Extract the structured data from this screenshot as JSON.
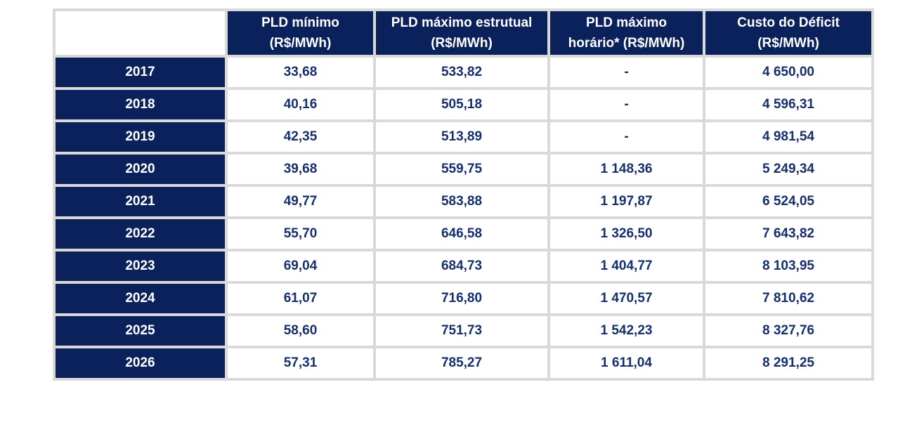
{
  "chart_data": {
    "type": "table",
    "title": "",
    "columns": [
      {
        "label": "PLD mínimo (R$/MWh)",
        "line1": "PLD mínimo",
        "line2": "(R$/MWh)"
      },
      {
        "label": "PLD máximo estrutual (R$/MWh)",
        "line1": "PLD máximo estrutual",
        "line2": "(R$/MWh)"
      },
      {
        "label": "PLD máximo horário* (R$/MWh)",
        "line1": "PLD máximo",
        "line2": "horário* (R$/MWh)"
      },
      {
        "label": "Custo do Déficit (R$/MWh)",
        "line1": "Custo do Déficit",
        "line2": "(R$/MWh)"
      }
    ],
    "rows": [
      {
        "year": "2017",
        "values": [
          "33,68",
          "533,82",
          "-",
          "4 650,00"
        ]
      },
      {
        "year": "2018",
        "values": [
          "40,16",
          "505,18",
          "-",
          "4 596,31"
        ]
      },
      {
        "year": "2019",
        "values": [
          "42,35",
          "513,89",
          "-",
          "4 981,54"
        ]
      },
      {
        "year": "2020",
        "values": [
          "39,68",
          "559,75",
          "1 148,36",
          "5 249,34"
        ]
      },
      {
        "year": "2021",
        "values": [
          "49,77",
          "583,88",
          "1 197,87",
          "6 524,05"
        ]
      },
      {
        "year": "2022",
        "values": [
          "55,70",
          "646,58",
          "1 326,50",
          "7 643,82"
        ]
      },
      {
        "year": "2023",
        "values": [
          "69,04",
          "684,73",
          "1 404,77",
          "8 103,95"
        ]
      },
      {
        "year": "2024",
        "values": [
          "61,07",
          "716,80",
          "1 470,57",
          "7 810,62"
        ]
      },
      {
        "year": "2025",
        "values": [
          "58,60",
          "751,73",
          "1 542,23",
          "8 327,76"
        ]
      },
      {
        "year": "2026",
        "values": [
          "57,31",
          "785,27",
          "1 611,04",
          "8 291,25"
        ]
      }
    ],
    "numeric_rows": [
      {
        "year": 2017,
        "pld_minimo": 33.68,
        "pld_maximo_estrutual": 533.82,
        "pld_maximo_horario": null,
        "custo_deficit": 4650.0
      },
      {
        "year": 2018,
        "pld_minimo": 40.16,
        "pld_maximo_estrutual": 505.18,
        "pld_maximo_horario": null,
        "custo_deficit": 4596.31
      },
      {
        "year": 2019,
        "pld_minimo": 42.35,
        "pld_maximo_estrutual": 513.89,
        "pld_maximo_horario": null,
        "custo_deficit": 4981.54
      },
      {
        "year": 2020,
        "pld_minimo": 39.68,
        "pld_maximo_estrutual": 559.75,
        "pld_maximo_horario": 1148.36,
        "custo_deficit": 5249.34
      },
      {
        "year": 2021,
        "pld_minimo": 49.77,
        "pld_maximo_estrutual": 583.88,
        "pld_maximo_horario": 1197.87,
        "custo_deficit": 6524.05
      },
      {
        "year": 2022,
        "pld_minimo": 55.7,
        "pld_maximo_estrutual": 646.58,
        "pld_maximo_horario": 1326.5,
        "custo_deficit": 7643.82
      },
      {
        "year": 2023,
        "pld_minimo": 69.04,
        "pld_maximo_estrutual": 684.73,
        "pld_maximo_horario": 1404.77,
        "custo_deficit": 8103.95
      },
      {
        "year": 2024,
        "pld_minimo": 61.07,
        "pld_maximo_estrutual": 716.8,
        "pld_maximo_horario": 1470.57,
        "custo_deficit": 7810.62
      },
      {
        "year": 2025,
        "pld_minimo": 58.6,
        "pld_maximo_estrutual": 751.73,
        "pld_maximo_horario": 1542.23,
        "custo_deficit": 8327.76
      },
      {
        "year": 2026,
        "pld_minimo": 57.31,
        "pld_maximo_estrutual": 785.27,
        "pld_maximo_horario": 1611.04,
        "custo_deficit": 8291.25
      }
    ]
  },
  "colors": {
    "navy_fill": "#0a215c",
    "grid_border": "#d9d9d9",
    "value_text": "#152f6d",
    "header_text": "#ffffff",
    "page_bg": "#ffffff"
  }
}
